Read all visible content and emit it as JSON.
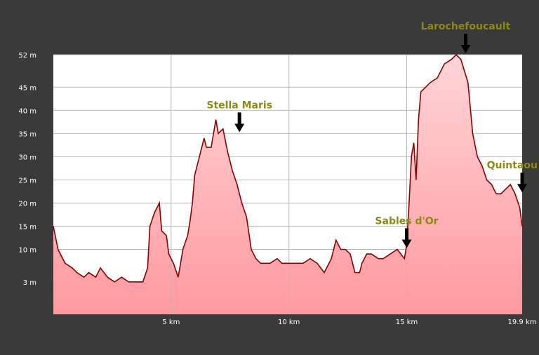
{
  "chart_data": {
    "type": "area",
    "xlim": [
      0,
      19.9
    ],
    "ylim": [
      -4,
      52
    ],
    "yticks": [
      {
        "value": 52,
        "label": "52 m"
      },
      {
        "value": 45,
        "label": "45 m"
      },
      {
        "value": 40,
        "label": "40 m"
      },
      {
        "value": 35,
        "label": "35 m"
      },
      {
        "value": 30,
        "label": "30 m"
      },
      {
        "value": 25,
        "label": "25 m"
      },
      {
        "value": 20,
        "label": "20 m"
      },
      {
        "value": 15,
        "label": "15 m"
      },
      {
        "value": 10,
        "label": "10 m"
      },
      {
        "value": 3,
        "label": "3 m"
      }
    ],
    "xticks": [
      {
        "value": 5,
        "label": "5 km"
      },
      {
        "value": 10,
        "label": "10 km"
      },
      {
        "value": 15,
        "label": "15 km"
      },
      {
        "value": 19.9,
        "label": "19.9 km"
      }
    ],
    "grid": {
      "vertical": true,
      "horizontal": true
    },
    "colors": {
      "line": "#8b0000",
      "fill_top": "#ffc0c4",
      "fill_bottom": "#ff9aa0",
      "grid": "#b8b8b8",
      "label": "#8c8a14"
    },
    "series": [
      {
        "x": [
          0,
          0.2,
          0.5,
          0.8,
          1.0,
          1.3,
          1.5,
          1.8,
          2.0,
          2.3,
          2.6,
          2.9,
          3.2,
          3.5,
          3.8,
          4.0,
          4.1,
          4.3,
          4.5,
          4.6,
          4.8,
          4.9,
          5.0,
          5.1,
          5.3,
          5.5,
          5.7,
          5.8,
          5.9,
          6.0,
          6.2,
          6.4,
          6.5,
          6.7,
          6.9,
          7.0,
          7.2,
          7.4,
          7.5,
          7.6,
          7.8,
          8.0,
          8.2,
          8.4,
          8.6,
          8.8,
          9.0,
          9.2,
          9.5,
          9.7,
          10.0,
          10.3,
          10.6,
          10.9,
          11.2,
          11.5,
          11.8,
          12.0,
          12.2,
          12.4,
          12.6,
          12.8,
          13.0,
          13.1,
          13.3,
          13.5,
          13.8,
          14.0,
          14.3,
          14.6,
          14.9,
          15.0,
          15.1,
          15.2,
          15.3,
          15.4,
          15.5,
          15.6,
          15.8,
          16.0,
          16.3,
          16.6,
          16.9,
          17.1,
          17.3,
          17.6,
          17.8,
          18.0,
          18.2,
          18.4,
          18.6,
          18.8,
          19.0,
          19.2,
          19.4,
          19.6,
          19.8,
          19.9
        ],
        "y": [
          15,
          10,
          7,
          6,
          5,
          4,
          5,
          4,
          6,
          4,
          3,
          4,
          3,
          3,
          3,
          6,
          15,
          18,
          20,
          14,
          13,
          9,
          8,
          7,
          4,
          10,
          13,
          16,
          20,
          26,
          30,
          34,
          32,
          32,
          38,
          35,
          36,
          31,
          29,
          27,
          24,
          20,
          17,
          10,
          8,
          7,
          7,
          7,
          8,
          7,
          7,
          7,
          7,
          8,
          7,
          5,
          8,
          12,
          10,
          10,
          9,
          5,
          5,
          7,
          9,
          9,
          8,
          8,
          9,
          10,
          8,
          11,
          20,
          30,
          33,
          25,
          38,
          44,
          45,
          46,
          47,
          50,
          51,
          52,
          51,
          46,
          35,
          30,
          28,
          25,
          24,
          22,
          22,
          23,
          24,
          22,
          19,
          15
        ]
      }
    ],
    "annotations": [
      {
        "label": "Stella Maris",
        "x": 7.9,
        "y": 35
      },
      {
        "label": "Sables d'Or",
        "x": 15.0,
        "y": 10
      },
      {
        "label": "Larochefoucault",
        "x": 17.5,
        "y": 52
      },
      {
        "label": "Quintaou",
        "x": 19.9,
        "y": 22
      }
    ]
  }
}
